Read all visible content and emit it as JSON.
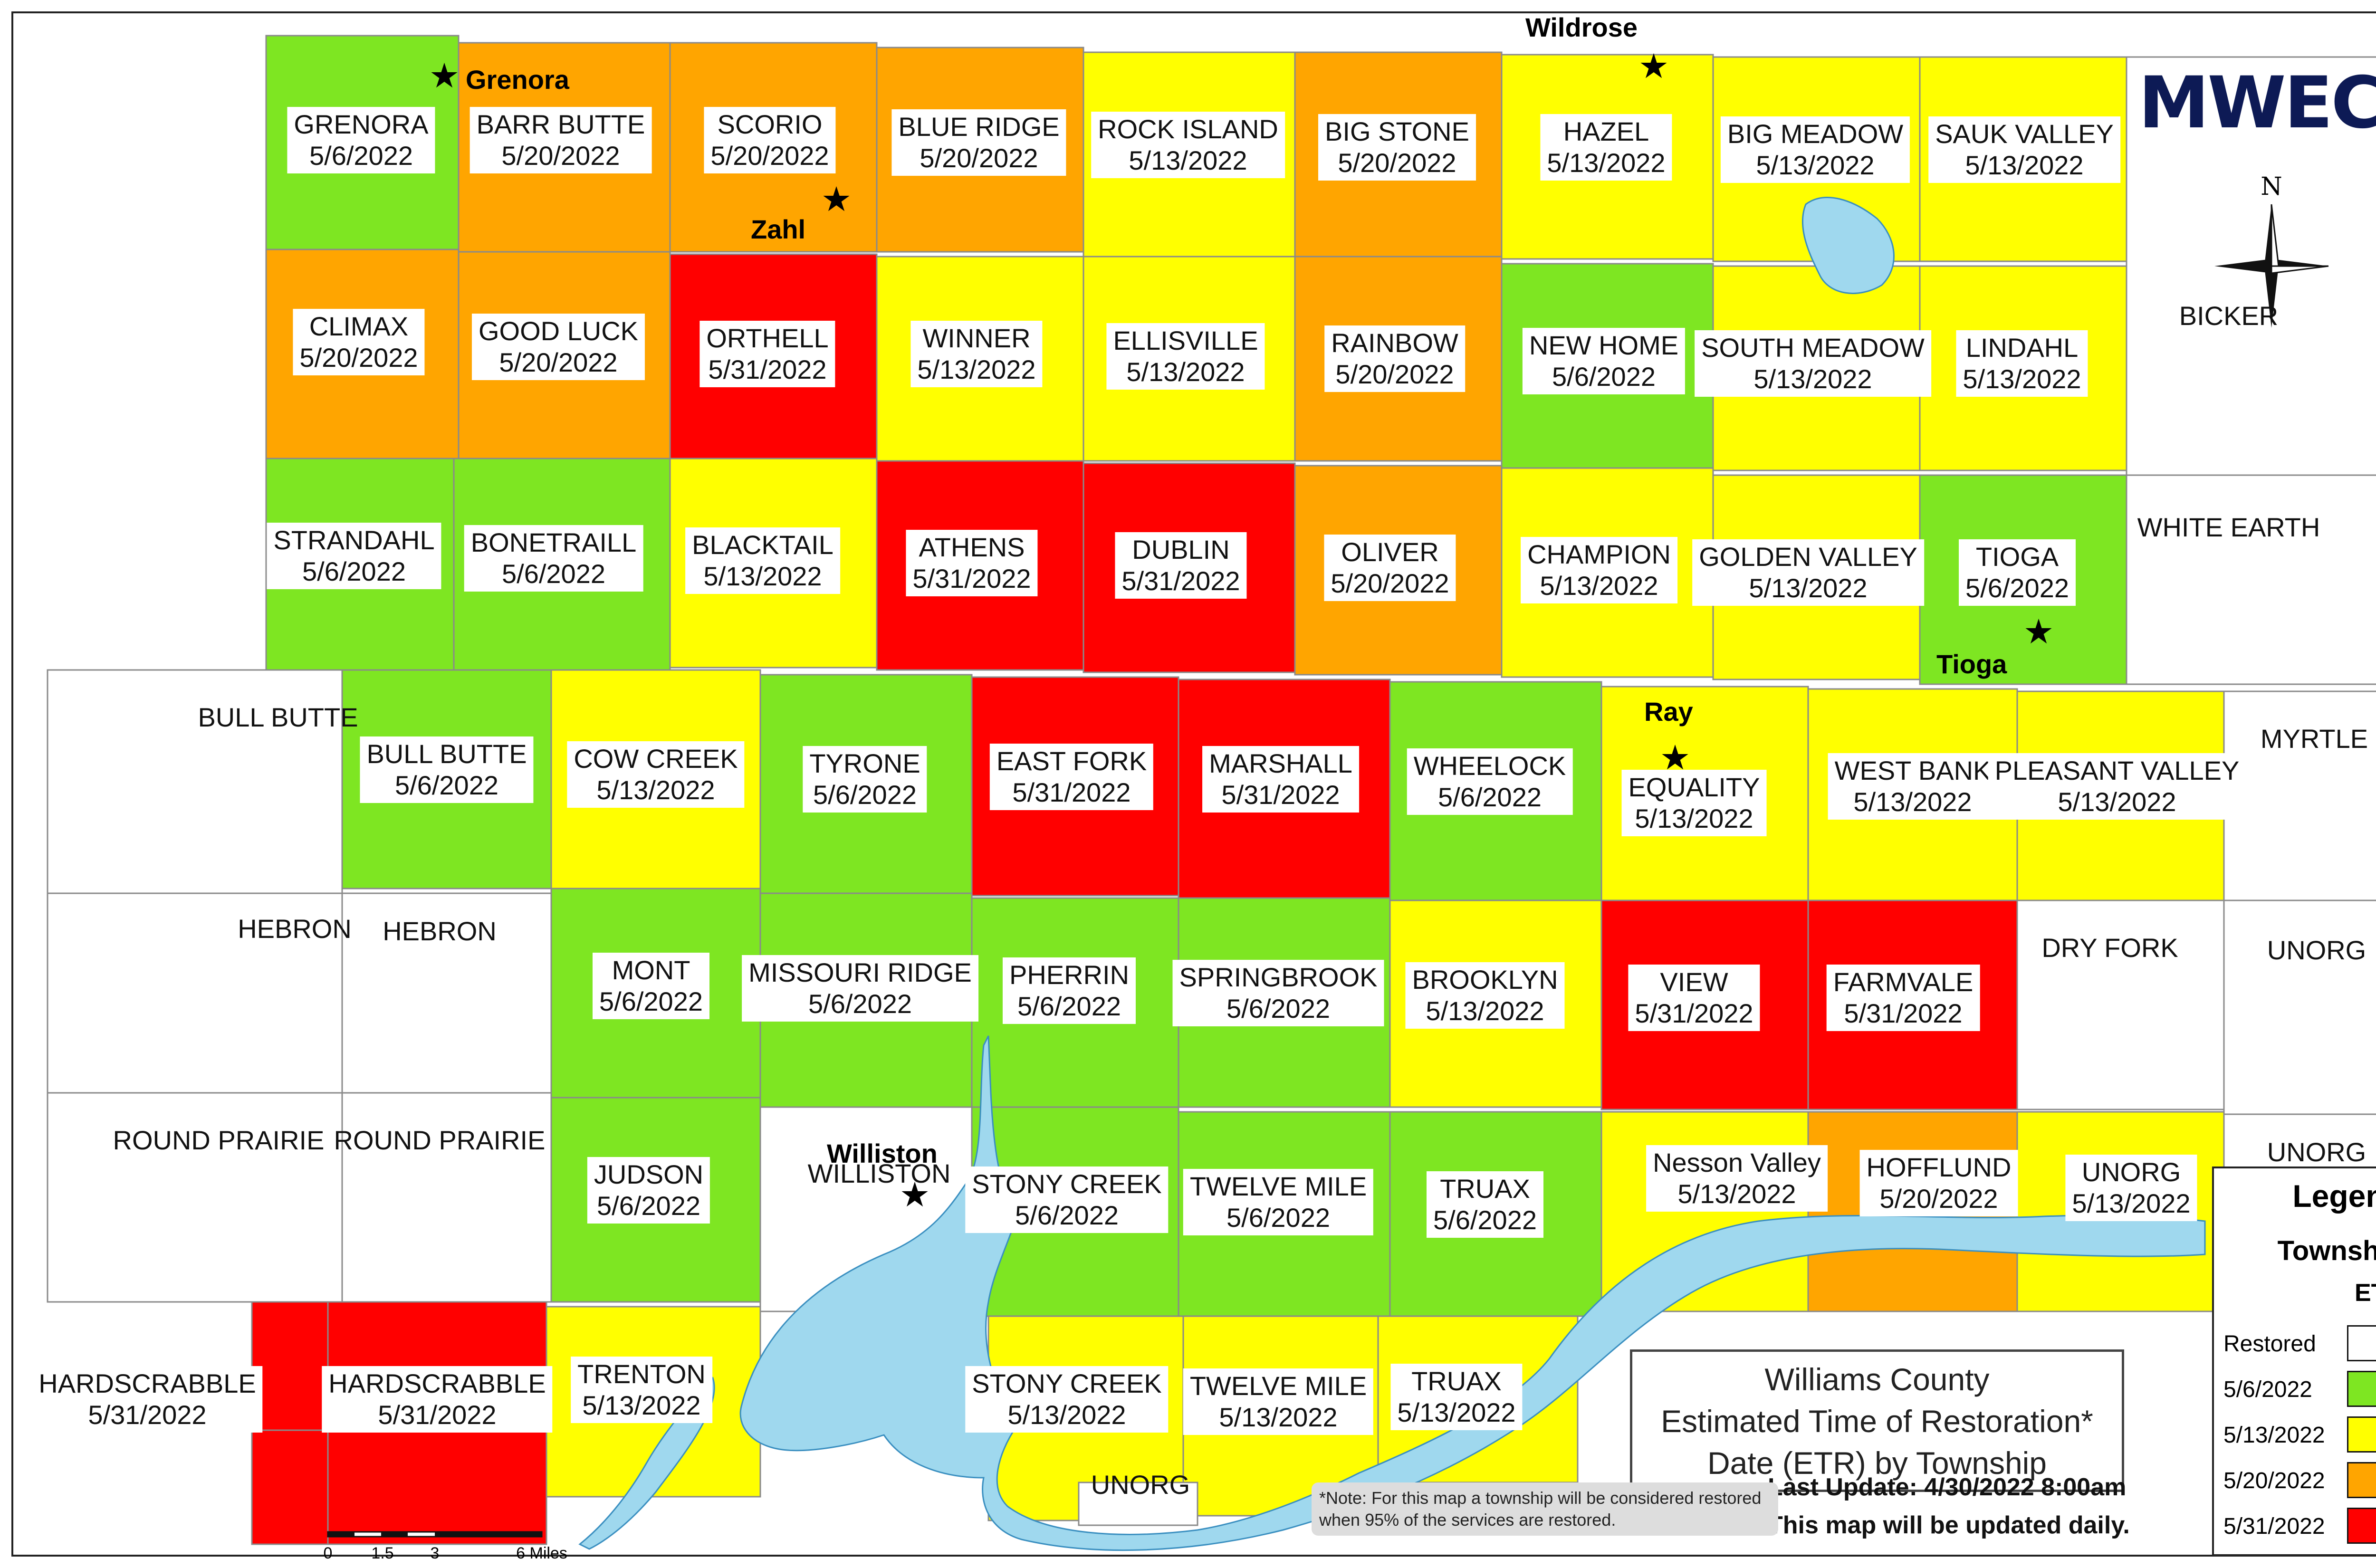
{
  "colors": {
    "restored": "#ffffff",
    "d0506": "#7ee622",
    "d0513": "#ffff00",
    "d0520": "#ffa500",
    "d0531": "#ff0000",
    "water": "#9fd8ee",
    "logo": "#0d1a55"
  },
  "logo": "MWEC",
  "compass_letter": "N",
  "title": [
    "Williams County",
    "Estimated Time of Restoration*",
    "Date (ETR) by Township"
  ],
  "update": [
    "Last Update: 4/30/2022 8:00am",
    "This map will be updated daily."
  ],
  "note": "*Note: For this map a township will be considered restored when 95% of the services are restored.",
  "legend": {
    "title": "Legend",
    "subtitle": "Township",
    "subsubtitle": "ETR",
    "items": [
      {
        "label": "Restored",
        "color": "#ffffff"
      },
      {
        "label": "5/6/2022",
        "color": "#7ee622"
      },
      {
        "label": "5/13/2022",
        "color": "#ffff00"
      },
      {
        "label": "5/20/2022",
        "color": "#ffa500"
      },
      {
        "label": "5/31/2022",
        "color": "#ff0000"
      }
    ]
  },
  "scale_bar": {
    "ticks": [
      "0",
      "1.5",
      "3",
      "6 Miles"
    ]
  },
  "towns": [
    "Wildrose",
    "Grenora",
    "Zahl",
    "Ray",
    "Tioga",
    "Williston"
  ],
  "townships": [
    {
      "name": "GRENORA",
      "etr": "5/6/2022"
    },
    {
      "name": "BARR BUTTE",
      "etr": "5/20/2022"
    },
    {
      "name": "SCORIO",
      "etr": "5/20/2022"
    },
    {
      "name": "BLUE RIDGE",
      "etr": "5/20/2022"
    },
    {
      "name": "ROCK ISLAND",
      "etr": "5/13/2022"
    },
    {
      "name": "BIG STONE",
      "etr": "5/20/2022"
    },
    {
      "name": "HAZEL",
      "etr": "5/13/2022"
    },
    {
      "name": "BIG MEADOW",
      "etr": "5/13/2022"
    },
    {
      "name": "SAUK VALLEY",
      "etr": "5/13/2022"
    },
    {
      "name": "CLIMAX",
      "etr": "5/20/2022"
    },
    {
      "name": "GOOD LUCK",
      "etr": "5/20/2022"
    },
    {
      "name": "ORTHELL",
      "etr": "5/31/2022"
    },
    {
      "name": "WINNER",
      "etr": "5/13/2022"
    },
    {
      "name": "ELLISVILLE",
      "etr": "5/13/2022"
    },
    {
      "name": "RAINBOW",
      "etr": "5/20/2022"
    },
    {
      "name": "NEW HOME",
      "etr": "5/6/2022"
    },
    {
      "name": "SOUTH MEADOW",
      "etr": "5/13/2022"
    },
    {
      "name": "LINDAHL",
      "etr": "5/13/2022"
    },
    {
      "name": "BICKER",
      "etr": ""
    },
    {
      "name": "STRANDAHL",
      "etr": "5/6/2022"
    },
    {
      "name": "BONETRAILL",
      "etr": "5/6/2022"
    },
    {
      "name": "BLACKTAIL",
      "etr": "5/13/2022"
    },
    {
      "name": "ATHENS",
      "etr": "5/31/2022"
    },
    {
      "name": "DUBLIN",
      "etr": "5/31/2022"
    },
    {
      "name": "OLIVER",
      "etr": "5/20/2022"
    },
    {
      "name": "CHAMPION",
      "etr": "5/13/2022"
    },
    {
      "name": "GOLDEN VALLEY",
      "etr": "5/13/2022"
    },
    {
      "name": "TIOGA",
      "etr": "5/6/2022"
    },
    {
      "name": "WHITE EARTH",
      "etr": ""
    },
    {
      "name": "BULL BUTTE",
      "etr": ""
    },
    {
      "name": "BULL BUTTE",
      "etr": "5/6/2022"
    },
    {
      "name": "COW CREEK",
      "etr": "5/13/2022"
    },
    {
      "name": "TYRONE",
      "etr": "5/6/2022"
    },
    {
      "name": "EAST FORK",
      "etr": "5/31/2022"
    },
    {
      "name": "MARSHALL",
      "etr": "5/31/2022"
    },
    {
      "name": "WHEELOCK",
      "etr": "5/6/2022"
    },
    {
      "name": "EQUALITY",
      "etr": "5/13/2022"
    },
    {
      "name": "WEST BANK",
      "etr": "5/13/2022"
    },
    {
      "name": "PLEASANT VALLEY",
      "etr": "5/13/2022"
    },
    {
      "name": "MYRTLE",
      "etr": ""
    },
    {
      "name": "HEBRON",
      "etr": ""
    },
    {
      "name": "HEBRON",
      "etr": ""
    },
    {
      "name": "MONT",
      "etr": "5/6/2022"
    },
    {
      "name": "MISSOURI RIDGE",
      "etr": "5/6/2022"
    },
    {
      "name": "PHERRIN",
      "etr": "5/6/2022"
    },
    {
      "name": "SPRINGBROOK",
      "etr": "5/6/2022"
    },
    {
      "name": "BROOKLYN",
      "etr": "5/13/2022"
    },
    {
      "name": "VIEW",
      "etr": "5/31/2022"
    },
    {
      "name": "FARMVALE",
      "etr": "5/31/2022"
    },
    {
      "name": "DRY FORK",
      "etr": ""
    },
    {
      "name": "UNORG",
      "etr": ""
    },
    {
      "name": "ROUND PRAIRIE",
      "etr": ""
    },
    {
      "name": "ROUND PRAIRIE",
      "etr": ""
    },
    {
      "name": "JUDSON",
      "etr": "5/6/2022"
    },
    {
      "name": "WILLISTON",
      "etr": ""
    },
    {
      "name": "STONY CREEK",
      "etr": "5/6/2022"
    },
    {
      "name": "TWELVE MILE",
      "etr": "5/6/2022"
    },
    {
      "name": "TRUAX",
      "etr": "5/6/2022"
    },
    {
      "name": "Nesson Valley",
      "etr": "5/13/2022"
    },
    {
      "name": "HOFFLUND",
      "etr": "5/20/2022"
    },
    {
      "name": "UNORG",
      "etr": "5/13/2022"
    },
    {
      "name": "UNORG",
      "etr": ""
    },
    {
      "name": "HARDSCRABBLE",
      "etr": "5/31/2022"
    },
    {
      "name": "HARDSCRABBLE",
      "etr": "5/31/2022"
    },
    {
      "name": "TRENTON",
      "etr": "5/13/2022"
    },
    {
      "name": "STONY CREEK",
      "etr": "5/13/2022"
    },
    {
      "name": "TWELVE MILE",
      "etr": "5/13/2022"
    },
    {
      "name": "TRUAX",
      "etr": "5/13/2022"
    },
    {
      "name": "UNORG",
      "etr": ""
    }
  ]
}
